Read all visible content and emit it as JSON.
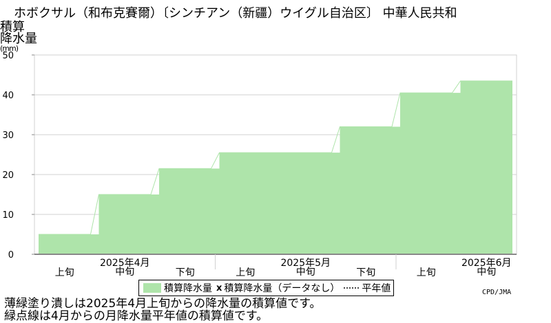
{
  "title": "ホボクサル（和布克賽爾）〔シンチアン（新疆）ウイグル自治区〕 中華人民共和",
  "y_label_line1": "積算",
  "y_label_line2": "降水量",
  "y_unit": "(mm)",
  "legend": {
    "series_label": "積算降水量",
    "missing_label": "積算降水量（データなし）",
    "normal_label": "平年値"
  },
  "credit": "CPD/JMA",
  "notes": [
    "薄緑塗り潰しは2025年4月上旬からの降水量の積算値です。",
    "緑点線は4月からの月降水量平年値の積算値です。"
  ],
  "colors": {
    "fill": "#aee4aa",
    "grid": "#d0d0d0",
    "axis": "#888888"
  },
  "chart_data": {
    "type": "area",
    "title": "ホボクサル（和布克賽爾）〔シンチアン（新疆）ウイグル自治区〕 中華人民共和",
    "ylabel": "積算降水量 (mm)",
    "ylim": [
      0,
      50
    ],
    "yticks": [
      0,
      10,
      20,
      30,
      40,
      50
    ],
    "grid": true,
    "legend_position": "bottom",
    "categories": [
      "2025年4月 上旬",
      "2025年4月 中旬",
      "2025年4月 下旬",
      "2025年5月 上旬",
      "2025年5月 中旬",
      "2025年5月 下旬",
      "2025年6月 上旬",
      "2025年6月 中旬"
    ],
    "period_labels": [
      "上旬",
      "中旬",
      "下旬",
      "上旬",
      "中旬",
      "下旬",
      "上旬",
      "中旬"
    ],
    "month_labels": [
      {
        "label": "2025年4月",
        "at_period": 1
      },
      {
        "label": "2025年5月",
        "at_period": 4
      },
      {
        "label": "2025年6月",
        "at_period": 7
      }
    ],
    "series": [
      {
        "name": "積算降水量",
        "values": [
          5,
          15,
          21.5,
          25.5,
          25.5,
          32,
          40.5,
          43.5
        ]
      }
    ]
  }
}
